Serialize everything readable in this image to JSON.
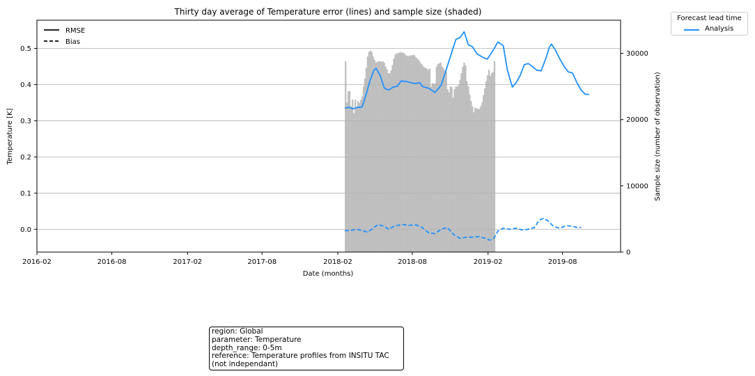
{
  "chart_data": {
    "type": "line",
    "title": "Thirty day average of Temperature error (lines) and sample size (shaded)",
    "xlabel": "Date (months)",
    "ylabel": "Temperature [K]",
    "y2label": "Sample size (number of observation)",
    "x_range": [
      "2016-02-01",
      "2019-12-20"
    ],
    "ylim": [
      -0.063,
      0.578
    ],
    "y2lim": [
      0,
      35000
    ],
    "x_ticks": [
      "2016-02",
      "2016-08",
      "2017-02",
      "2017-08",
      "2018-02",
      "2018-08",
      "2019-02",
      "2019-08"
    ],
    "y_ticks": [
      "0.0",
      "0.1",
      "0.2",
      "0.3",
      "0.4",
      "0.5"
    ],
    "y2_ticks": [
      "0",
      "10000",
      "20000",
      "30000"
    ],
    "grid": "horizontal",
    "legend_style": {
      "title": "",
      "entries": [
        {
          "label": "RMSE",
          "style": "solid"
        },
        {
          "label": "Bias",
          "style": "dashed"
        }
      ],
      "placement": "top-left"
    },
    "legend_lead": {
      "title": "Forecast lead time",
      "entries": [
        {
          "label": "Analysis",
          "color": "#1e90ff"
        }
      ],
      "placement": "outside-top-right"
    },
    "colors": {
      "line": "#1e90ff",
      "bars": "#bfbfbf",
      "grid": "#b0b0b0"
    },
    "series": [
      {
        "name": "RMSE",
        "color": "#1e90ff",
        "points": [
          [
            "2018-02-18",
            0.335
          ],
          [
            "2018-03-01",
            0.337
          ],
          [
            "2018-03-10",
            0.333
          ],
          [
            "2018-03-20",
            0.337
          ],
          [
            "2018-04-01",
            0.338
          ],
          [
            "2018-04-10",
            0.37
          ],
          [
            "2018-04-20",
            0.41
          ],
          [
            "2018-04-30",
            0.44
          ],
          [
            "2018-05-05",
            0.445
          ],
          [
            "2018-05-15",
            0.425
          ],
          [
            "2018-05-25",
            0.39
          ],
          [
            "2018-06-05",
            0.385
          ],
          [
            "2018-06-15",
            0.393
          ],
          [
            "2018-06-25",
            0.395
          ],
          [
            "2018-07-05",
            0.41
          ],
          [
            "2018-07-20",
            0.408
          ],
          [
            "2018-08-05",
            0.403
          ],
          [
            "2018-08-20",
            0.405
          ],
          [
            "2018-08-25",
            0.395
          ],
          [
            "2018-09-10",
            0.39
          ],
          [
            "2018-09-25",
            0.378
          ],
          [
            "2018-10-10",
            0.398
          ],
          [
            "2018-10-20",
            0.432
          ],
          [
            "2018-11-05",
            0.49
          ],
          [
            "2018-11-15",
            0.525
          ],
          [
            "2018-11-25",
            0.53
          ],
          [
            "2018-12-05",
            0.546
          ],
          [
            "2018-12-15",
            0.51
          ],
          [
            "2018-12-25",
            0.505
          ],
          [
            "2019-01-05",
            0.485
          ],
          [
            "2019-01-20",
            0.475
          ],
          [
            "2019-01-30",
            0.47
          ],
          [
            "2019-02-15",
            0.498
          ],
          [
            "2019-02-25",
            0.518
          ],
          [
            "2019-03-10",
            0.507
          ],
          [
            "2019-03-20",
            0.44
          ],
          [
            "2019-04-01",
            0.393
          ],
          [
            "2019-04-10",
            0.405
          ],
          [
            "2019-04-20",
            0.425
          ],
          [
            "2019-04-30",
            0.455
          ],
          [
            "2019-05-10",
            0.458
          ],
          [
            "2019-05-20",
            0.45
          ],
          [
            "2019-05-30",
            0.44
          ],
          [
            "2019-06-10",
            0.438
          ],
          [
            "2019-06-20",
            0.468
          ],
          [
            "2019-06-30",
            0.503
          ],
          [
            "2019-07-05",
            0.512
          ],
          [
            "2019-07-15",
            0.495
          ],
          [
            "2019-07-25",
            0.472
          ],
          [
            "2019-08-05",
            0.45
          ],
          [
            "2019-08-15",
            0.435
          ],
          [
            "2019-08-25",
            0.432
          ],
          [
            "2019-09-05",
            0.405
          ],
          [
            "2019-09-15",
            0.385
          ],
          [
            "2019-09-25",
            0.373
          ],
          [
            "2019-10-05",
            0.373
          ]
        ]
      },
      {
        "name": "Bias",
        "color": "#1e90ff",
        "points": [
          [
            "2018-02-18",
            -0.004
          ],
          [
            "2018-03-05",
            -0.003
          ],
          [
            "2018-03-20",
            0.0
          ],
          [
            "2018-04-05",
            -0.005
          ],
          [
            "2018-04-15",
            -0.008
          ],
          [
            "2018-04-30",
            0.005
          ],
          [
            "2018-05-10",
            0.013
          ],
          [
            "2018-05-25",
            0.008
          ],
          [
            "2018-06-05",
            0.0
          ],
          [
            "2018-06-20",
            0.01
          ],
          [
            "2018-07-10",
            0.013
          ],
          [
            "2018-07-25",
            0.011
          ],
          [
            "2018-08-10",
            0.012
          ],
          [
            "2018-08-25",
            0.005
          ],
          [
            "2018-09-10",
            -0.01
          ],
          [
            "2018-09-25",
            -0.012
          ],
          [
            "2018-10-10",
            0.0
          ],
          [
            "2018-10-25",
            0.005
          ],
          [
            "2018-11-10",
            -0.015
          ],
          [
            "2018-11-25",
            -0.025
          ],
          [
            "2018-12-10",
            -0.022
          ],
          [
            "2018-12-25",
            -0.022
          ],
          [
            "2019-01-10",
            -0.02
          ],
          [
            "2019-01-25",
            -0.025
          ],
          [
            "2019-02-05",
            -0.03
          ],
          [
            "2019-02-15",
            -0.025
          ],
          [
            "2019-02-25",
            -0.005
          ],
          [
            "2019-03-10",
            0.003
          ],
          [
            "2019-03-25",
            0.0
          ],
          [
            "2019-04-10",
            0.003
          ],
          [
            "2019-04-25",
            -0.002
          ],
          [
            "2019-05-10",
            0.0
          ],
          [
            "2019-05-25",
            0.005
          ],
          [
            "2019-06-05",
            0.025
          ],
          [
            "2019-06-15",
            0.03
          ],
          [
            "2019-06-25",
            0.025
          ],
          [
            "2019-07-10",
            0.008
          ],
          [
            "2019-07-25",
            0.003
          ],
          [
            "2019-08-10",
            0.01
          ],
          [
            "2019-08-25",
            0.008
          ],
          [
            "2019-09-05",
            0.005
          ],
          [
            "2019-09-15",
            0.005
          ]
        ]
      }
    ],
    "sample_size": {
      "name": "Sample size",
      "color": "#bfbfbf",
      "start": "2018-02-18",
      "bar_width_days": 3.35,
      "values": [
        28800,
        22600,
        24300,
        24300,
        22000,
        23000,
        21000,
        23000,
        21800,
        22800,
        22500,
        23000,
        23500,
        25000,
        26200,
        27800,
        29500,
        30200,
        30400,
        30200,
        29500,
        29000,
        28600,
        28700,
        28800,
        28800,
        28700,
        28800,
        28600,
        28000,
        27600,
        27000,
        27000,
        27400,
        28200,
        29200,
        29800,
        30000,
        30000,
        30100,
        30200,
        30100,
        30100,
        29900,
        29700,
        29600,
        29600,
        29700,
        29700,
        29800,
        29700,
        29400,
        29200,
        29000,
        28700,
        28400,
        28100,
        27900,
        27800,
        27700,
        27500,
        27700,
        25000,
        25500,
        25400,
        25500,
        28000,
        28400,
        28500,
        28600,
        28000,
        27700,
        27400,
        27200,
        24600,
        24100,
        25000,
        24900,
        23300,
        24600,
        25000,
        25000,
        25200,
        26000,
        27000,
        28000,
        28600,
        28200,
        25800,
        25000,
        23800,
        22800,
        22000,
        21100,
        21800,
        21700,
        21600,
        21600,
        22000,
        22600,
        23700,
        24700,
        25800,
        26700,
        27500,
        26600,
        27000,
        27200,
        28800
      ]
    }
  },
  "info_box": {
    "lines": [
      "region: Global",
      "parameter: Temperature",
      "depth_range: 0-5m",
      "reference: Temperature profiles from INSITU TAC",
      "(not independant)"
    ]
  }
}
